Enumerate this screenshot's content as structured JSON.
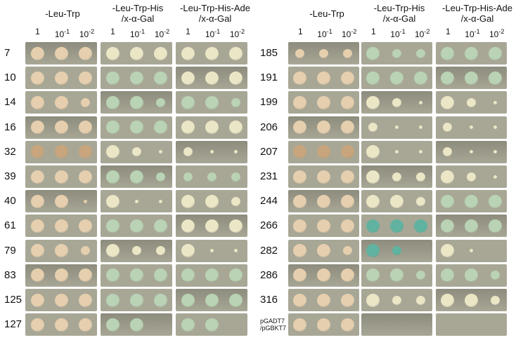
{
  "headers": [
    "-Leu-Trp",
    "-Leu-Trp-His\n/x-α-Gal",
    "-Leu-Trp-His-Ade\n/x-α-Gal"
  ],
  "dilutions": [
    {
      "base": "1",
      "exp": ""
    },
    {
      "base": "10",
      "exp": "-1"
    },
    {
      "base": "10",
      "exp": "-2"
    }
  ],
  "left_panel": {
    "rows": [
      "7",
      "10",
      "14",
      "16",
      "32",
      "39",
      "40",
      "61",
      "79",
      "83",
      "125",
      "127"
    ],
    "growth": [
      [
        [
          3,
          3,
          3
        ],
        [
          3,
          3,
          3
        ],
        [
          3,
          3,
          3
        ]
      ],
      [
        [
          3,
          3,
          3
        ],
        [
          3,
          3,
          3
        ],
        [
          3,
          3,
          3
        ]
      ],
      [
        [
          3,
          3,
          2
        ],
        [
          3,
          3,
          2
        ],
        [
          3,
          3,
          2
        ]
      ],
      [
        [
          3,
          3,
          3
        ],
        [
          3,
          3,
          3
        ],
        [
          3,
          3,
          3
        ]
      ],
      [
        [
          3,
          3,
          3
        ],
        [
          3,
          2,
          1
        ],
        [
          2,
          1,
          1
        ]
      ],
      [
        [
          3,
          3,
          3
        ],
        [
          3,
          3,
          2
        ],
        [
          2,
          2,
          2
        ]
      ],
      [
        [
          3,
          3,
          1
        ],
        [
          3,
          1,
          1
        ],
        [
          3,
          3,
          2
        ]
      ],
      [
        [
          3,
          3,
          3
        ],
        [
          3,
          3,
          3
        ],
        [
          3,
          3,
          3
        ]
      ],
      [
        [
          3,
          3,
          2
        ],
        [
          3,
          2,
          2
        ],
        [
          3,
          1,
          1
        ]
      ],
      [
        [
          3,
          3,
          3
        ],
        [
          3,
          3,
          3
        ],
        [
          3,
          3,
          3
        ]
      ],
      [
        [
          3,
          3,
          3
        ],
        [
          3,
          3,
          3
        ],
        [
          3,
          3,
          3
        ]
      ],
      [
        [
          3,
          3,
          3
        ],
        [
          3,
          3,
          0
        ],
        [
          3,
          3,
          0
        ]
      ]
    ],
    "blue": [
      [
        0,
        0,
        0
      ],
      [
        0,
        1,
        0
      ],
      [
        0,
        1,
        1
      ],
      [
        0,
        1,
        0
      ],
      [
        0,
        0,
        0
      ],
      [
        0,
        1,
        1
      ],
      [
        0,
        0,
        0
      ],
      [
        0,
        1,
        0
      ],
      [
        0,
        0,
        0
      ],
      [
        0,
        1,
        1
      ],
      [
        0,
        1,
        1
      ],
      [
        0,
        1,
        1
      ]
    ]
  },
  "right_panel": {
    "rows": [
      "185",
      "191",
      "199",
      "206",
      "207",
      "231",
      "244",
      "266",
      "282",
      "286",
      "316",
      "pGADT7\n/pGBKT7"
    ],
    "growth": [
      [
        [
          2,
          2,
          2
        ],
        [
          3,
          2,
          2
        ],
        [
          3,
          3,
          3
        ]
      ],
      [
        [
          3,
          3,
          3
        ],
        [
          3,
          3,
          3
        ],
        [
          3,
          3,
          3
        ]
      ],
      [
        [
          3,
          3,
          3
        ],
        [
          3,
          2,
          1
        ],
        [
          3,
          2,
          1
        ]
      ],
      [
        [
          3,
          3,
          3
        ],
        [
          2,
          1,
          1
        ],
        [
          2,
          1,
          1
        ]
      ],
      [
        [
          3,
          3,
          3
        ],
        [
          3,
          1,
          1
        ],
        [
          2,
          1,
          1
        ]
      ],
      [
        [
          3,
          3,
          3
        ],
        [
          3,
          2,
          2
        ],
        [
          3,
          2,
          1
        ]
      ],
      [
        [
          3,
          3,
          3
        ],
        [
          3,
          3,
          2
        ],
        [
          3,
          3,
          3
        ]
      ],
      [
        [
          3,
          3,
          3
        ],
        [
          3,
          3,
          3
        ],
        [
          3,
          3,
          3
        ]
      ],
      [
        [
          3,
          3,
          2
        ],
        [
          3,
          2,
          0
        ],
        [
          3,
          1,
          0
        ]
      ],
      [
        [
          3,
          3,
          3
        ],
        [
          3,
          3,
          2
        ],
        [
          3,
          3,
          2
        ]
      ],
      [
        [
          3,
          3,
          3
        ],
        [
          3,
          2,
          2
        ],
        [
          3,
          3,
          2
        ]
      ],
      [
        [
          3,
          3,
          3
        ],
        [
          0,
          0,
          0
        ],
        [
          0,
          0,
          0
        ]
      ]
    ],
    "blue": [
      [
        0,
        1,
        1
      ],
      [
        0,
        1,
        1
      ],
      [
        0,
        0,
        0
      ],
      [
        0,
        0,
        0
      ],
      [
        0,
        0,
        0
      ],
      [
        0,
        0,
        0
      ],
      [
        0,
        0,
        1
      ],
      [
        0,
        2,
        1
      ],
      [
        0,
        2,
        0
      ],
      [
        0,
        1,
        1
      ],
      [
        0,
        0,
        0
      ],
      [
        0,
        0,
        0
      ]
    ]
  },
  "colors": {
    "plate_bg": "#a8a796",
    "plate_dark": "#8d8c7d",
    "colony_cream": "#e6cfae",
    "colony_tan": "#c8a57c",
    "colony_green": "#b9d3b4",
    "colony_blue": "#5fb3a0",
    "colony_pale": "#eae6c6",
    "divider": "#ffffff"
  }
}
